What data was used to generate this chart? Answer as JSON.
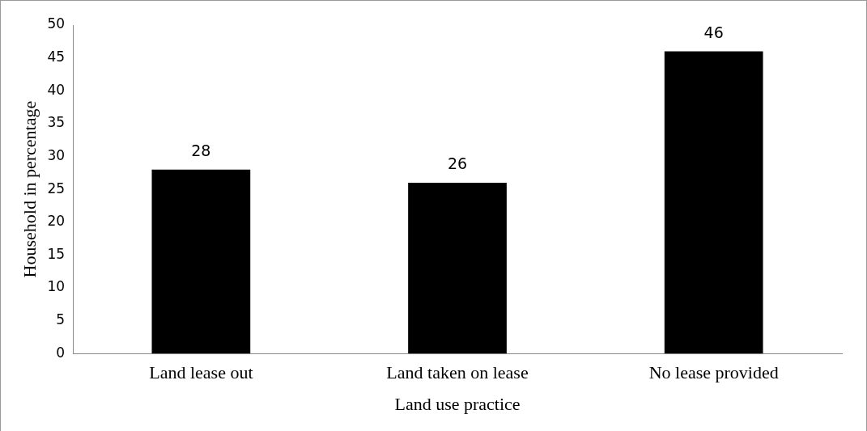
{
  "chart_data": {
    "type": "bar",
    "xlabel": "Land use practice",
    "ylabel": "Household in percentage",
    "categories": [
      "Land lease out",
      "Land taken on lease",
      "No lease provided"
    ],
    "values": [
      28,
      26,
      46
    ],
    "color": "#000000",
    "ylim": [
      0,
      50
    ],
    "yticks": [
      0,
      5,
      10,
      15,
      20,
      25,
      30,
      35,
      40,
      45,
      50
    ],
    "grid": false,
    "legend": false,
    "data_labels": true
  }
}
